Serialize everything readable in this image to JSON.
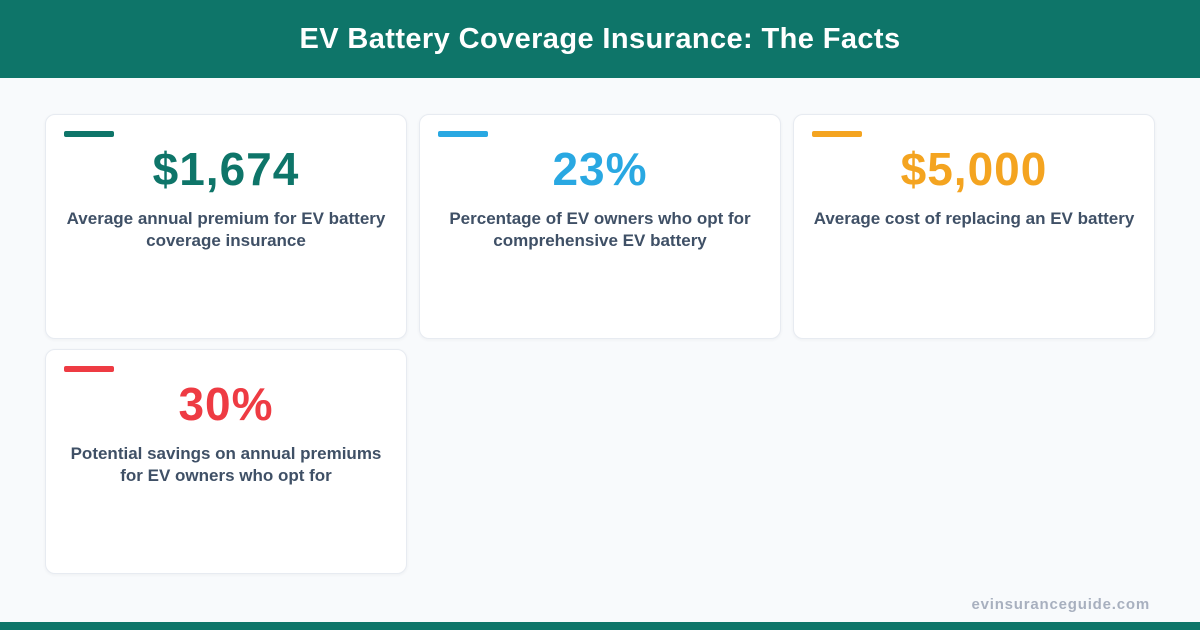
{
  "header": {
    "title": "EV Battery Coverage Insurance: The Facts",
    "background": "#0e7569",
    "text_color": "#ffffff"
  },
  "cards": [
    {
      "value": "$1,674",
      "accent": "#0e7569",
      "label": "Average annual premium for EV battery coverage insurance"
    },
    {
      "value": "23%",
      "accent": "#29a8e2",
      "label": "Percentage of EV owners who opt for comprehensive EV battery"
    },
    {
      "value": "$5,000",
      "accent": "#f4a420",
      "label": "Average cost of replacing an EV battery"
    },
    {
      "value": "30%",
      "accent": "#ee3b43",
      "label": "Potential savings on annual premiums for EV owners who opt for"
    }
  ],
  "footer": {
    "watermark": "evinsuranceguide.com",
    "bar_color": "#0e7569"
  },
  "palette": {
    "page_background": "#f8fafc",
    "card_background": "#ffffff",
    "card_border": "#e7ebf1",
    "label_text": "#3f5066",
    "watermark_text": "#a8b0bf"
  },
  "chart_data": {
    "type": "table",
    "title": "EV Battery Coverage Insurance: The Facts",
    "columns": [
      "value",
      "description"
    ],
    "rows": [
      [
        "$1,674",
        "Average annual premium for EV battery coverage insurance"
      ],
      [
        "23%",
        "Percentage of EV owners who opt for comprehensive EV battery"
      ],
      [
        "$5,000",
        "Average cost of replacing an EV battery"
      ],
      [
        "30%",
        "Potential savings on annual premiums for EV owners who opt for"
      ]
    ],
    "values_numeric": [
      1674,
      23,
      5000,
      30
    ],
    "units": [
      "USD",
      "%",
      "USD",
      "%"
    ]
  }
}
